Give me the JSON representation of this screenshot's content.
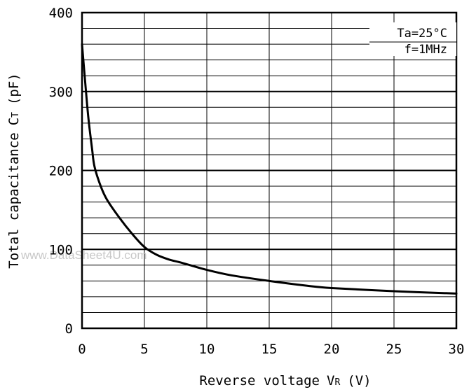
{
  "chart_data": {
    "type": "line",
    "xlabel": "Reverse voltage",
    "xlabel_symbol": "V",
    "xlabel_subscript": "R",
    "xlabel_unit": "(V)",
    "ylabel": "Total capacitance",
    "ylabel_symbol": "C",
    "ylabel_subscript": "T",
    "ylabel_unit": "(pF)",
    "xlim": [
      0,
      30
    ],
    "ylim": [
      0,
      400
    ],
    "x_ticks": [
      0,
      5,
      10,
      15,
      20,
      25,
      30
    ],
    "y_ticks": [
      0,
      100,
      200,
      300,
      400
    ],
    "x_tick_labels": [
      "0",
      "5",
      "10",
      "15",
      "20",
      "25",
      "30"
    ],
    "y_tick_labels": [
      "0",
      "100",
      "200",
      "300",
      "400"
    ],
    "x_minor_step": 5,
    "y_minor_step": 20,
    "grid": true,
    "annotations": [
      "Ta=25°C",
      "f=1MHz"
    ],
    "annotation_placement": "top-right",
    "watermark": "www.DataSheet4U.com",
    "series": [
      {
        "x": [
          0,
          0.2,
          0.5,
          0.8,
          1,
          1.5,
          2,
          3,
          4,
          5,
          6,
          7,
          8,
          10,
          12,
          15,
          18,
          20,
          25,
          30
        ],
        "y": [
          360,
          322,
          268,
          228,
          205,
          180,
          163,
          140,
          120,
          103,
          93,
          87,
          83,
          74,
          67,
          60,
          54,
          51,
          47,
          44
        ]
      }
    ]
  }
}
